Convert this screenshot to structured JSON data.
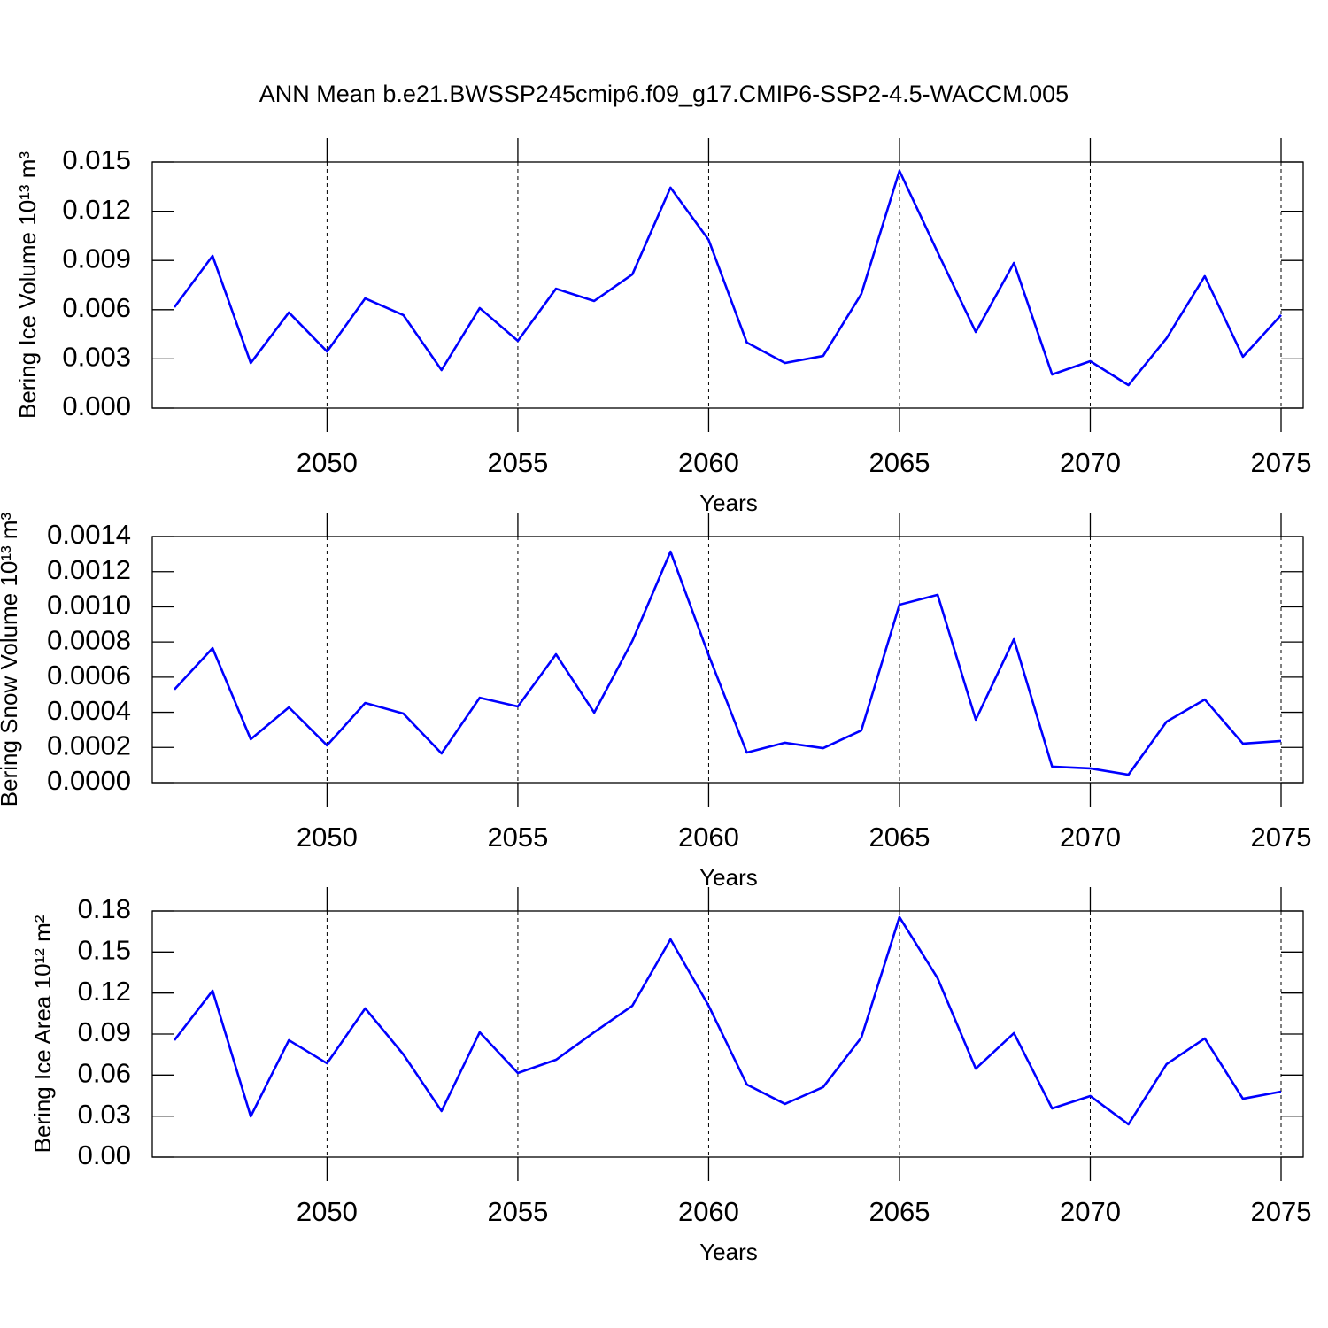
{
  "chart_data": [
    {
      "type": "line",
      "title": "ANN Mean b.e21.BWSSP245cmip6.f09_g17.CMIP6-SSP2-4.5-WACCM.005",
      "x_label": "Years",
      "y_label": "Bering Ice Volume 10¹³ m³",
      "color": "#0000ff",
      "grid": "x",
      "x": [
        2046,
        2047,
        2048,
        2049,
        2050,
        2051,
        2052,
        2053,
        2054,
        2055,
        2056,
        2057,
        2058,
        2059,
        2060,
        2061,
        2062,
        2063,
        2064,
        2065,
        2066,
        2067,
        2068,
        2069,
        2070,
        2071,
        2072,
        2073,
        2074,
        2075
      ],
      "values": [
        0.00615,
        0.00928,
        0.00275,
        0.00583,
        0.00345,
        0.00669,
        0.00567,
        0.00232,
        0.0061,
        0.0041,
        0.00728,
        0.00653,
        0.00815,
        0.01344,
        0.01025,
        0.004,
        0.00275,
        0.00318,
        0.00696,
        0.01446,
        0.0095,
        0.00464,
        0.00885,
        0.00205,
        0.00286,
        0.0014,
        0.00426,
        0.00804,
        0.00313,
        0.00567
      ],
      "xlim": [
        2045.42,
        2075.58
      ],
      "xticks": [
        2050,
        2055,
        2060,
        2065,
        2070,
        2075
      ],
      "ylim": [
        0,
        0.015
      ],
      "yticks": [
        {
          "value": 0,
          "label": "0.000"
        },
        0.003,
        0.006,
        0.009,
        0.012,
        0.015
      ]
    },
    {
      "type": "line",
      "x_label": "Years",
      "y_label": "Bering Snow Volume 10¹³ m³",
      "color": "#0000ff",
      "grid": "x",
      "x": [
        2046,
        2047,
        2048,
        2049,
        2050,
        2051,
        2052,
        2053,
        2054,
        2055,
        2056,
        2057,
        2058,
        2059,
        2060,
        2061,
        2062,
        2063,
        2064,
        2065,
        2066,
        2067,
        2068,
        2069,
        2070,
        2071,
        2072,
        2073,
        2074,
        2075
      ],
      "values": [
        0.00053,
        0.000765,
        0.000247,
        0.000428,
        0.000212,
        0.000453,
        0.000393,
        0.000166,
        0.000483,
        0.000433,
        0.00073,
        0.000398,
        0.000806,
        0.001314,
        0.000725,
        0.000171,
        0.000227,
        0.000196,
        0.000297,
        0.001012,
        0.001068,
        0.000358,
        0.000816,
        9.1e-05,
        8.1e-05,
        4.5e-05,
        0.000347,
        0.000473,
        0.000222,
        0.000237
      ],
      "xlim": [
        2045.42,
        2075.58
      ],
      "xticks": [
        2050,
        2055,
        2060,
        2065,
        2070,
        2075
      ],
      "ylim": [
        0,
        0.0014
      ],
      "yticks": [
        {
          "value": 0,
          "label": "0.0000"
        },
        0.0002,
        0.0004,
        0.0006,
        0.0008,
        {
          "value": 0.001,
          "label": "0.0010"
        },
        0.0012,
        0.0014
      ]
    },
    {
      "type": "line",
      "x_label": "Years",
      "y_label": "Bering Ice Area 10¹² m²",
      "color": "#0000ff",
      "grid": "x",
      "x": [
        2046,
        2047,
        2048,
        2049,
        2050,
        2051,
        2052,
        2053,
        2054,
        2055,
        2056,
        2057,
        2058,
        2059,
        2060,
        2061,
        2062,
        2063,
        2064,
        2065,
        2066,
        2067,
        2068,
        2069,
        2070,
        2071,
        2072,
        2073,
        2074,
        2075
      ],
      "values": [
        0.0855,
        0.1217,
        0.0298,
        0.0855,
        0.0686,
        0.1088,
        0.0751,
        0.0337,
        0.0913,
        0.0615,
        0.0712,
        0.0913,
        0.1107,
        0.1593,
        0.1107,
        0.0531,
        0.0389,
        0.0512,
        0.0874,
        0.1755,
        0.1308,
        0.0647,
        0.0907,
        0.0356,
        0.0447,
        0.024,
        0.068,
        0.0868,
        0.0427,
        0.0479
      ],
      "xlim": [
        2045.42,
        2075.58
      ],
      "xticks": [
        2050,
        2055,
        2060,
        2065,
        2070,
        2075
      ],
      "ylim": [
        0,
        0.18
      ],
      "yticks": [
        {
          "value": 0,
          "label": "0.00"
        },
        0.03,
        0.06,
        0.09,
        0.12,
        0.15,
        0.18
      ]
    }
  ]
}
